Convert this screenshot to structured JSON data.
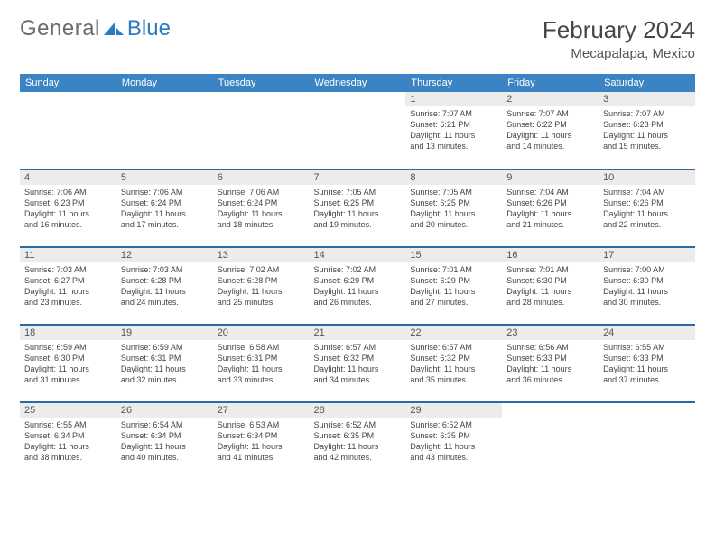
{
  "brand": {
    "word1": "General",
    "word2": "Blue"
  },
  "title": "February 2024",
  "location": "Mecapalapa, Mexico",
  "colors": {
    "header_bg": "#3a84c4",
    "header_text": "#ffffff",
    "row_divider": "#2a6aa5",
    "daynum_bg": "#ececec",
    "body_text": "#444444",
    "title_text": "#464646",
    "logo_gray": "#6b6b6b",
    "logo_blue": "#2a7bbf"
  },
  "weekdays": [
    "Sunday",
    "Monday",
    "Tuesday",
    "Wednesday",
    "Thursday",
    "Friday",
    "Saturday"
  ],
  "weeks": [
    [
      null,
      null,
      null,
      null,
      {
        "n": "1",
        "sr": "Sunrise: 7:07 AM",
        "ss": "Sunset: 6:21 PM",
        "d1": "Daylight: 11 hours",
        "d2": "and 13 minutes."
      },
      {
        "n": "2",
        "sr": "Sunrise: 7:07 AM",
        "ss": "Sunset: 6:22 PM",
        "d1": "Daylight: 11 hours",
        "d2": "and 14 minutes."
      },
      {
        "n": "3",
        "sr": "Sunrise: 7:07 AM",
        "ss": "Sunset: 6:23 PM",
        "d1": "Daylight: 11 hours",
        "d2": "and 15 minutes."
      }
    ],
    [
      {
        "n": "4",
        "sr": "Sunrise: 7:06 AM",
        "ss": "Sunset: 6:23 PM",
        "d1": "Daylight: 11 hours",
        "d2": "and 16 minutes."
      },
      {
        "n": "5",
        "sr": "Sunrise: 7:06 AM",
        "ss": "Sunset: 6:24 PM",
        "d1": "Daylight: 11 hours",
        "d2": "and 17 minutes."
      },
      {
        "n": "6",
        "sr": "Sunrise: 7:06 AM",
        "ss": "Sunset: 6:24 PM",
        "d1": "Daylight: 11 hours",
        "d2": "and 18 minutes."
      },
      {
        "n": "7",
        "sr": "Sunrise: 7:05 AM",
        "ss": "Sunset: 6:25 PM",
        "d1": "Daylight: 11 hours",
        "d2": "and 19 minutes."
      },
      {
        "n": "8",
        "sr": "Sunrise: 7:05 AM",
        "ss": "Sunset: 6:25 PM",
        "d1": "Daylight: 11 hours",
        "d2": "and 20 minutes."
      },
      {
        "n": "9",
        "sr": "Sunrise: 7:04 AM",
        "ss": "Sunset: 6:26 PM",
        "d1": "Daylight: 11 hours",
        "d2": "and 21 minutes."
      },
      {
        "n": "10",
        "sr": "Sunrise: 7:04 AM",
        "ss": "Sunset: 6:26 PM",
        "d1": "Daylight: 11 hours",
        "d2": "and 22 minutes."
      }
    ],
    [
      {
        "n": "11",
        "sr": "Sunrise: 7:03 AM",
        "ss": "Sunset: 6:27 PM",
        "d1": "Daylight: 11 hours",
        "d2": "and 23 minutes."
      },
      {
        "n": "12",
        "sr": "Sunrise: 7:03 AM",
        "ss": "Sunset: 6:28 PM",
        "d1": "Daylight: 11 hours",
        "d2": "and 24 minutes."
      },
      {
        "n": "13",
        "sr": "Sunrise: 7:02 AM",
        "ss": "Sunset: 6:28 PM",
        "d1": "Daylight: 11 hours",
        "d2": "and 25 minutes."
      },
      {
        "n": "14",
        "sr": "Sunrise: 7:02 AM",
        "ss": "Sunset: 6:29 PM",
        "d1": "Daylight: 11 hours",
        "d2": "and 26 minutes."
      },
      {
        "n": "15",
        "sr": "Sunrise: 7:01 AM",
        "ss": "Sunset: 6:29 PM",
        "d1": "Daylight: 11 hours",
        "d2": "and 27 minutes."
      },
      {
        "n": "16",
        "sr": "Sunrise: 7:01 AM",
        "ss": "Sunset: 6:30 PM",
        "d1": "Daylight: 11 hours",
        "d2": "and 28 minutes."
      },
      {
        "n": "17",
        "sr": "Sunrise: 7:00 AM",
        "ss": "Sunset: 6:30 PM",
        "d1": "Daylight: 11 hours",
        "d2": "and 30 minutes."
      }
    ],
    [
      {
        "n": "18",
        "sr": "Sunrise: 6:59 AM",
        "ss": "Sunset: 6:30 PM",
        "d1": "Daylight: 11 hours",
        "d2": "and 31 minutes."
      },
      {
        "n": "19",
        "sr": "Sunrise: 6:59 AM",
        "ss": "Sunset: 6:31 PM",
        "d1": "Daylight: 11 hours",
        "d2": "and 32 minutes."
      },
      {
        "n": "20",
        "sr": "Sunrise: 6:58 AM",
        "ss": "Sunset: 6:31 PM",
        "d1": "Daylight: 11 hours",
        "d2": "and 33 minutes."
      },
      {
        "n": "21",
        "sr": "Sunrise: 6:57 AM",
        "ss": "Sunset: 6:32 PM",
        "d1": "Daylight: 11 hours",
        "d2": "and 34 minutes."
      },
      {
        "n": "22",
        "sr": "Sunrise: 6:57 AM",
        "ss": "Sunset: 6:32 PM",
        "d1": "Daylight: 11 hours",
        "d2": "and 35 minutes."
      },
      {
        "n": "23",
        "sr": "Sunrise: 6:56 AM",
        "ss": "Sunset: 6:33 PM",
        "d1": "Daylight: 11 hours",
        "d2": "and 36 minutes."
      },
      {
        "n": "24",
        "sr": "Sunrise: 6:55 AM",
        "ss": "Sunset: 6:33 PM",
        "d1": "Daylight: 11 hours",
        "d2": "and 37 minutes."
      }
    ],
    [
      {
        "n": "25",
        "sr": "Sunrise: 6:55 AM",
        "ss": "Sunset: 6:34 PM",
        "d1": "Daylight: 11 hours",
        "d2": "and 38 minutes."
      },
      {
        "n": "26",
        "sr": "Sunrise: 6:54 AM",
        "ss": "Sunset: 6:34 PM",
        "d1": "Daylight: 11 hours",
        "d2": "and 40 minutes."
      },
      {
        "n": "27",
        "sr": "Sunrise: 6:53 AM",
        "ss": "Sunset: 6:34 PM",
        "d1": "Daylight: 11 hours",
        "d2": "and 41 minutes."
      },
      {
        "n": "28",
        "sr": "Sunrise: 6:52 AM",
        "ss": "Sunset: 6:35 PM",
        "d1": "Daylight: 11 hours",
        "d2": "and 42 minutes."
      },
      {
        "n": "29",
        "sr": "Sunrise: 6:52 AM",
        "ss": "Sunset: 6:35 PM",
        "d1": "Daylight: 11 hours",
        "d2": "and 43 minutes."
      },
      null,
      null
    ]
  ]
}
